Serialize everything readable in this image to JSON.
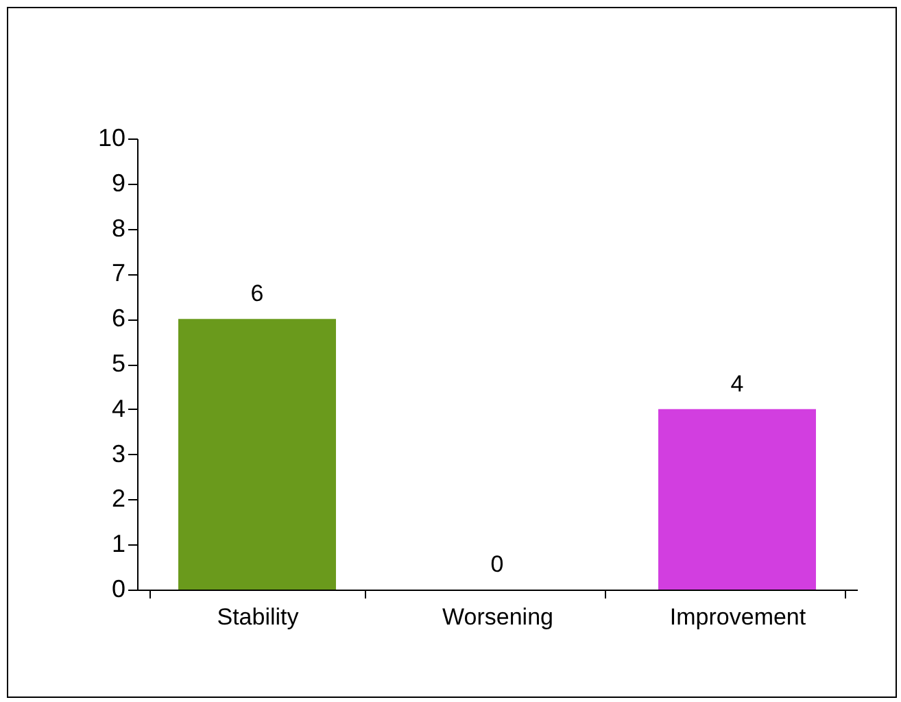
{
  "chart_data": {
    "type": "bar",
    "categories": [
      "Stability",
      "Worsening",
      "Improvement"
    ],
    "values": [
      6,
      0,
      4
    ],
    "colors": [
      "#6a9a1c",
      "#8a8a8a",
      "#d23ee0"
    ],
    "ylim": [
      0,
      10
    ],
    "yticks": [
      0,
      1,
      2,
      3,
      4,
      5,
      6,
      7,
      8,
      9,
      10
    ],
    "grid": false,
    "data_labels": true
  }
}
